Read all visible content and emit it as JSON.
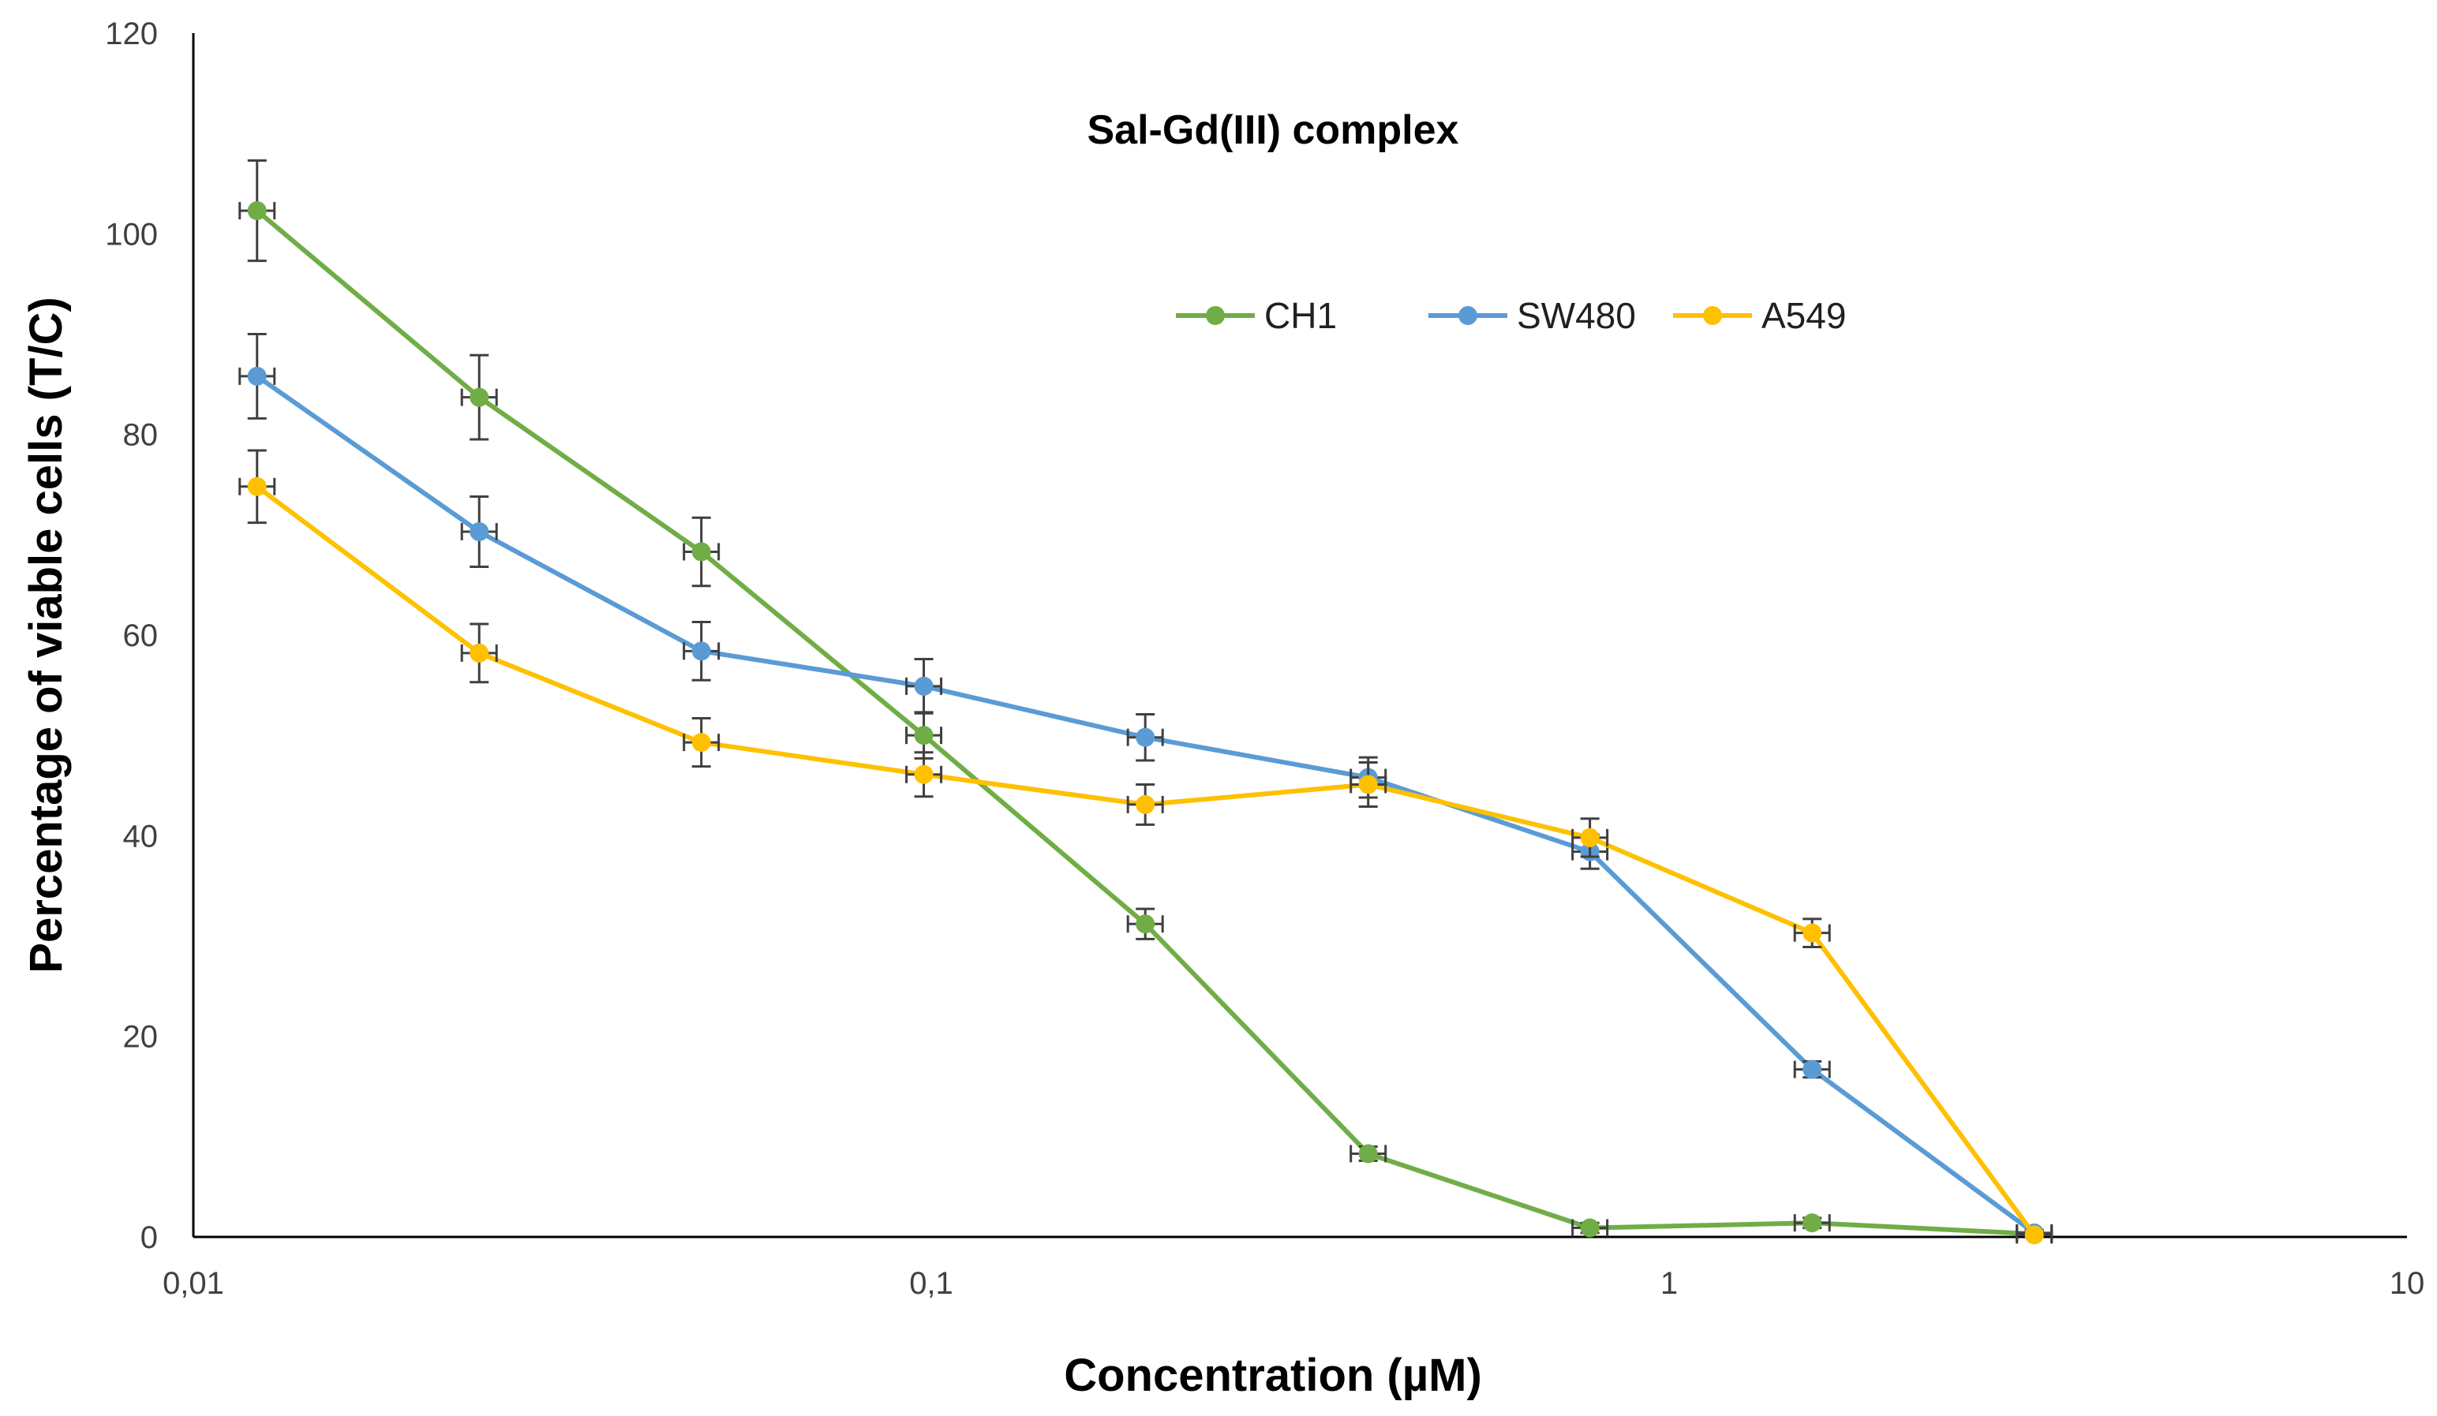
{
  "chart_data": {
    "type": "line",
    "title": "Sal-Gd(III) complex",
    "xlabel": "Concentration (µM)",
    "ylabel": "Percentage of viable cells (T/C)",
    "xscale": "log",
    "xlim": [
      0.01,
      10
    ],
    "ylim": [
      0,
      120
    ],
    "x_ticks": [
      0.01,
      0.1,
      1,
      10
    ],
    "x_tick_labels": [
      "0,01",
      "0,1",
      "1",
      "10"
    ],
    "y_ticks": [
      0,
      20,
      40,
      60,
      80,
      100,
      120
    ],
    "y_tick_labels": [
      "0",
      "20",
      "40",
      "60",
      "80",
      "100",
      "120"
    ],
    "grid": false,
    "legend_position": "top-center",
    "x": [
      0.0122,
      0.0244,
      0.0488,
      0.0977,
      0.195,
      0.391,
      0.781,
      1.5625,
      3.125
    ],
    "series": [
      {
        "name": "CH1",
        "color": "#70AD47",
        "values": [
          102.3,
          83.7,
          68.3,
          50.0,
          31.2,
          8.3,
          0.9,
          1.4,
          0.3
        ],
        "errors": [
          5.0,
          4.2,
          3.4,
          2.3,
          1.5,
          0.7,
          0.5,
          0.5,
          0.3
        ]
      },
      {
        "name": "SW480",
        "color": "#5B9BD5",
        "values": [
          85.8,
          70.3,
          58.4,
          54.9,
          49.8,
          45.8,
          38.4,
          16.7,
          0.4
        ],
        "errors": [
          4.2,
          3.5,
          2.9,
          2.7,
          2.3,
          2.0,
          1.7,
          0.8,
          0.3
        ]
      },
      {
        "name": "A549",
        "color": "#FFC000",
        "values": [
          74.8,
          58.2,
          49.3,
          46.1,
          43.1,
          45.1,
          39.8,
          30.3,
          0.2
        ],
        "errors": [
          3.6,
          2.9,
          2.4,
          2.2,
          2.0,
          2.2,
          1.9,
          1.4,
          0.2
        ]
      }
    ],
    "error_bar_color": "#404040"
  }
}
